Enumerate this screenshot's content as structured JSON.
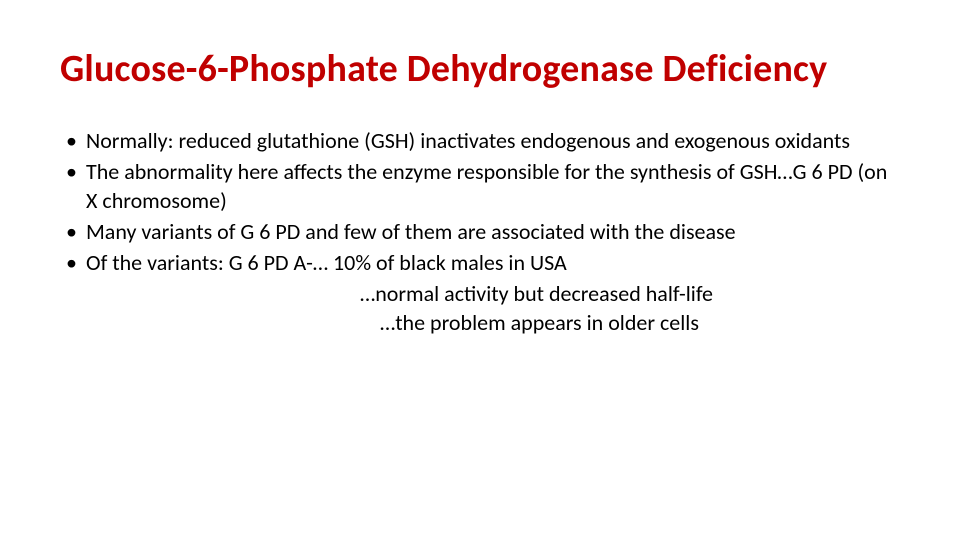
{
  "title": "Glucose-6-Phosphate Dehydrogenase Deficiency",
  "title_color": "#c00000",
  "body_color": "#000000",
  "background_color": "#ffffff",
  "title_fontsize": 38,
  "body_fontsize": 22,
  "bullets": [
    "Normally: reduced glutathione (GSH) inactivates endogenous and exogenous oxidants",
    "The abnormality here affects the enzyme responsible for the synthesis of GSH…G 6 PD (on X chromosome)",
    "Many variants of G 6 PD and few of them are associated with the disease",
    "Of the variants: G 6 PD A-… 10% of black males in USA"
  ],
  "sublines": [
    "…normal activity but decreased half-life",
    "…the problem appears in older cells"
  ]
}
